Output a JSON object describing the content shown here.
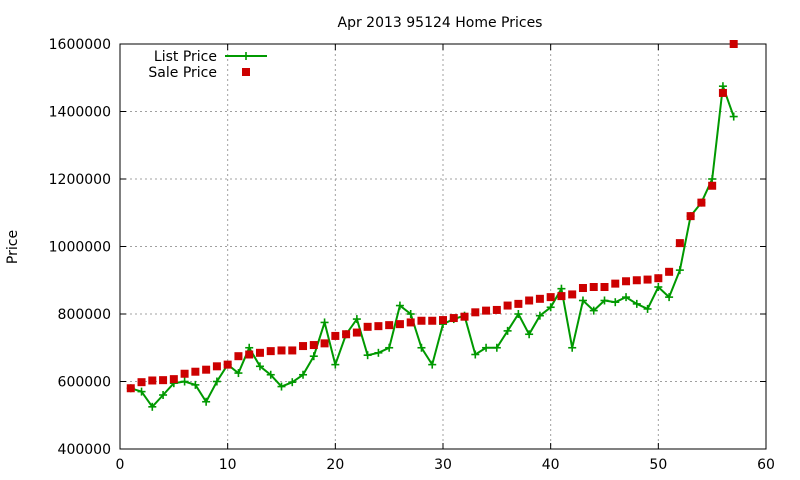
{
  "chart_data": {
    "type": "line",
    "title": "Apr 2013 95124 Home Prices",
    "xlabel": "",
    "ylabel": "Price",
    "xlim": [
      0,
      60
    ],
    "ylim": [
      400000,
      1600000
    ],
    "x_ticks": [
      0,
      10,
      20,
      30,
      40,
      50,
      60
    ],
    "y_ticks": [
      400000,
      600000,
      800000,
      1000000,
      1200000,
      1400000,
      1600000
    ],
    "grid": true,
    "legend_position": "top-left",
    "series": [
      {
        "name": "List Price",
        "style": "line+cross",
        "color": "#009900",
        "x": [
          1,
          2,
          3,
          4,
          5,
          6,
          7,
          8,
          9,
          10,
          11,
          12,
          13,
          14,
          15,
          16,
          17,
          18,
          19,
          20,
          21,
          22,
          23,
          24,
          25,
          26,
          27,
          28,
          29,
          30,
          31,
          32,
          33,
          34,
          35,
          36,
          37,
          38,
          39,
          40,
          41,
          42,
          43,
          44,
          45,
          46,
          47,
          48,
          49,
          50,
          51,
          52,
          53,
          54,
          55,
          56,
          57
        ],
        "values": [
          580000,
          570000,
          525000,
          560000,
          595000,
          600000,
          590000,
          540000,
          600000,
          650000,
          625000,
          700000,
          645000,
          620000,
          585000,
          598000,
          620000,
          675000,
          775000,
          650000,
          740000,
          785000,
          678000,
          685000,
          700000,
          825000,
          800000,
          700000,
          650000,
          770000,
          785000,
          795000,
          680000,
          700000,
          700000,
          750000,
          800000,
          740000,
          795000,
          820000,
          875000,
          700000,
          840000,
          810000,
          840000,
          835000,
          850000,
          830000,
          815000,
          880000,
          850000,
          930000,
          1090000,
          1130000,
          1200000,
          1475000,
          1385000
        ]
      },
      {
        "name": "Sale Price",
        "style": "square",
        "color": "#cc0000",
        "x": [
          1,
          2,
          3,
          4,
          5,
          6,
          7,
          8,
          9,
          10,
          11,
          12,
          13,
          14,
          15,
          16,
          17,
          18,
          19,
          20,
          21,
          22,
          23,
          24,
          25,
          26,
          27,
          28,
          29,
          30,
          31,
          32,
          33,
          34,
          35,
          36,
          37,
          38,
          39,
          40,
          41,
          42,
          43,
          44,
          45,
          46,
          47,
          48,
          49,
          50,
          51,
          52,
          53,
          54,
          55,
          56,
          57
        ],
        "values": [
          580000,
          598000,
          603000,
          604000,
          607000,
          623000,
          629000,
          635000,
          645000,
          650000,
          675000,
          680000,
          685000,
          690000,
          692000,
          692000,
          705000,
          708000,
          713000,
          735000,
          740000,
          745000,
          762000,
          764000,
          767000,
          770000,
          775000,
          780000,
          780000,
          782000,
          788000,
          792000,
          805000,
          810000,
          812000,
          825000,
          830000,
          840000,
          845000,
          850000,
          853000,
          858000,
          877000,
          880000,
          880000,
          890000,
          897000,
          900000,
          902000,
          906000,
          925000,
          1010000,
          1090000,
          1130000,
          1180000,
          1455000,
          1600000
        ]
      }
    ]
  }
}
